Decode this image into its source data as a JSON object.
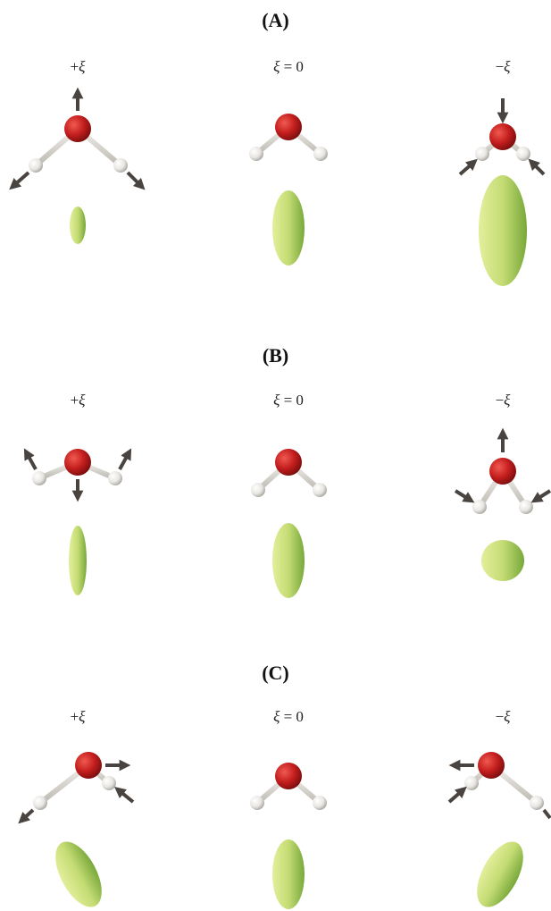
{
  "panels": [
    {
      "title": "(A)",
      "labels": [
        {
          "sign": "+",
          "xi": "ξ",
          "suffix": ""
        },
        {
          "sign": "",
          "xi": "ξ",
          "suffix": " = 0"
        },
        {
          "sign": "−",
          "xi": "ξ",
          "suffix": ""
        }
      ]
    },
    {
      "title": "(B)",
      "labels": [
        {
          "sign": "+",
          "xi": "ξ",
          "suffix": ""
        },
        {
          "sign": "",
          "xi": "ξ",
          "suffix": " = 0"
        },
        {
          "sign": "−",
          "xi": "ξ",
          "suffix": ""
        }
      ]
    },
    {
      "title": "(C)",
      "labels": [
        {
          "sign": "+",
          "xi": "ξ",
          "suffix": ""
        },
        {
          "sign": "",
          "xi": "ξ",
          "suffix": " = 0"
        },
        {
          "sign": "−",
          "xi": "ξ",
          "suffix": ""
        }
      ]
    }
  ],
  "colors": {
    "oxygen": "#c41e1e",
    "hydrogen": "#e8e6e2",
    "bond": "#d8d4cc",
    "arrow": "#4a4440",
    "ellipsoid_light": "#e4ee9c",
    "ellipsoid_dark": "#78a83a"
  }
}
